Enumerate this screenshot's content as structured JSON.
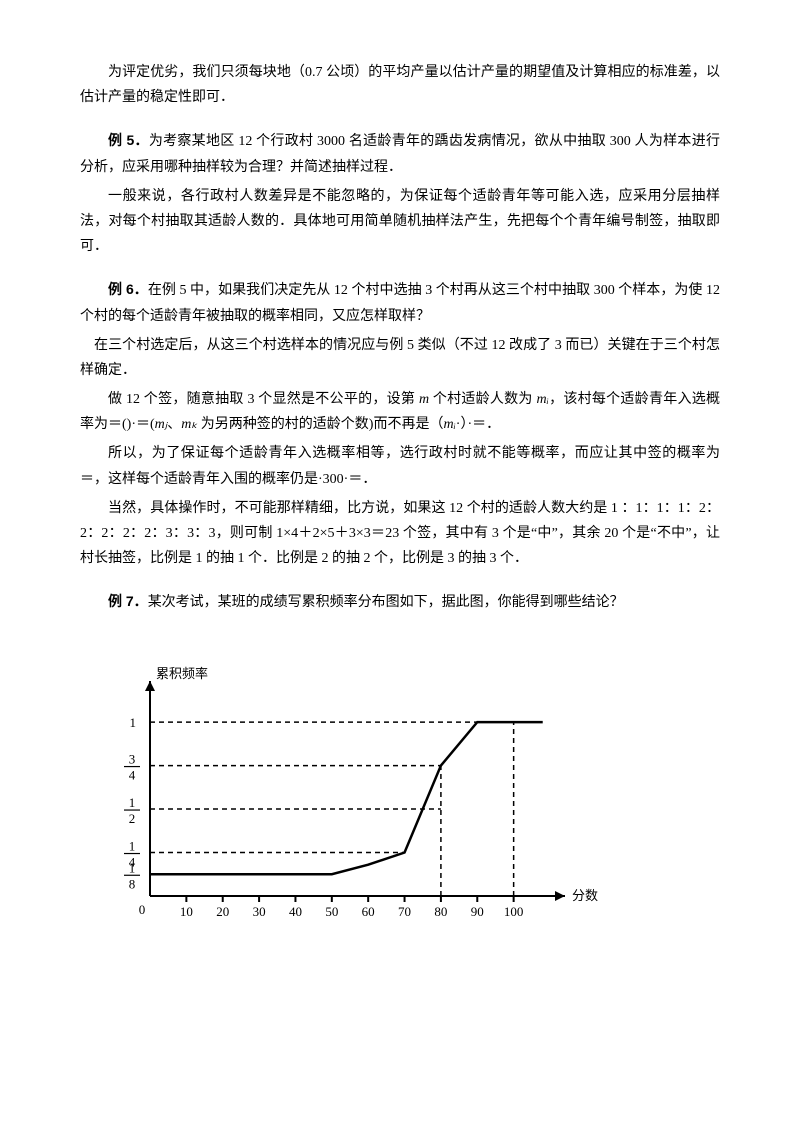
{
  "para_intro": "为评定优劣，我们只须每块地（0.7 公顷）的平均产量以估计产量的期望值及计算相应的标准差，以估计产量的稳定性即可．",
  "ex5": {
    "label": "例 5．",
    "prompt": "为考察某地区 12 个行政村 3000 名适龄青年的踽齿发病情况，欲从中抽取 300 人为样本进行分析，应采用哪种抽样较为合理？并简述抽样过程．",
    "sol1": "一般来说，各行政村人数差异是不能忽略的，为保证每个适龄青年等可能入选，应采用分层抽样法，对每个村抽取其适龄人数的．具体地可用简单随机抽样法产生，先把每个个青年编号制签，抽取即可．"
  },
  "ex6": {
    "label": "例 6．",
    "prompt": "在例 5 中，如果我们决定先从 12 个村中选抽 3 个村再从这三个村中抽取 300 个样本，为使 12 个村的每个适龄青年被抽取的概率相同，又应怎样取样？",
    "sol1": "在三个村选定后，从这三个村选样本的情况应与例 5 类似（不过 12 改成了 3 而已）关键在于三个村怎样确定．",
    "sol2_a": "做 12 个签，随意抽取 3 个显然是不公平的，设第 ",
    "sol2_m": "m",
    "sol2_b": " 个村适龄人数为 ",
    "sol2_mi": "mᵢ",
    "sol2_c": "，该村每个适龄青年入选概率为＝()·＝(",
    "sol2_mj": "mⱼ",
    "sol2_d": "、",
    "sol2_mk": "mₖ",
    "sol2_e": " 为另两种签的村的适龄个数)而不再是（",
    "sol2_mi2": "mᵢ",
    "sol2_f": "·）·＝．",
    "sol3": "所以，为了保证每个适龄青年入选概率相等，选行政村时就不能等概率，而应让其中签的概率为＝，这样每个适龄青年入围的概率仍是·300·＝．",
    "sol4": "当然，具体操作时，不可能那样精细，比方说，如果这 12 个村的适龄人数大约是 1  ：1：1：1：2：2：2：2：2：3：3：3，则可制 1×4＋2×5＋3×3＝23 个签，其中有 3 个是“中”，其余 20 个是“不中”，让村长抽签，比例是 1 的抽 1 个．比例是 2 的抽 2 个，比例是 3 的抽 3 个．"
  },
  "ex7": {
    "label": "例 7．",
    "prompt": "某次考试，某班的成绩写累积频率分布图如下，据此图，你能得到哪些结论？"
  },
  "chart": {
    "type": "line",
    "xlabel": "分数",
    "ylabel": "累积频率",
    "x_ticks": [
      "10",
      "20",
      "30",
      "40",
      "50",
      "60",
      "70",
      "80",
      "90",
      "100"
    ],
    "y_ticks": [
      {
        "num": "1",
        "den": "8",
        "v": 0.125
      },
      {
        "num": "1",
        "den": "4",
        "v": 0.25
      },
      {
        "num": "1",
        "den": "2",
        "v": 0.5
      },
      {
        "num": "3",
        "den": "4",
        "v": 0.75
      },
      {
        "num": "1",
        "den": "",
        "v": 1.0
      }
    ],
    "points": [
      {
        "x": 0,
        "y": 0.125
      },
      {
        "x": 50,
        "y": 0.125
      },
      {
        "x": 60,
        "y": 0.18
      },
      {
        "x": 70,
        "y": 0.25
      },
      {
        "x": 80,
        "y": 0.75
      },
      {
        "x": 90,
        "y": 1.0
      },
      {
        "x": 100,
        "y": 1.0
      }
    ],
    "dash_h": [
      0.125,
      0.25,
      0.5,
      0.75,
      1.0
    ],
    "dash_v": [
      80,
      100
    ],
    "xlim": [
      0,
      110
    ],
    "ylim": [
      0,
      1.15
    ],
    "colors": {
      "axis": "#000000",
      "curve": "#000000",
      "bg": "#ffffff"
    }
  }
}
